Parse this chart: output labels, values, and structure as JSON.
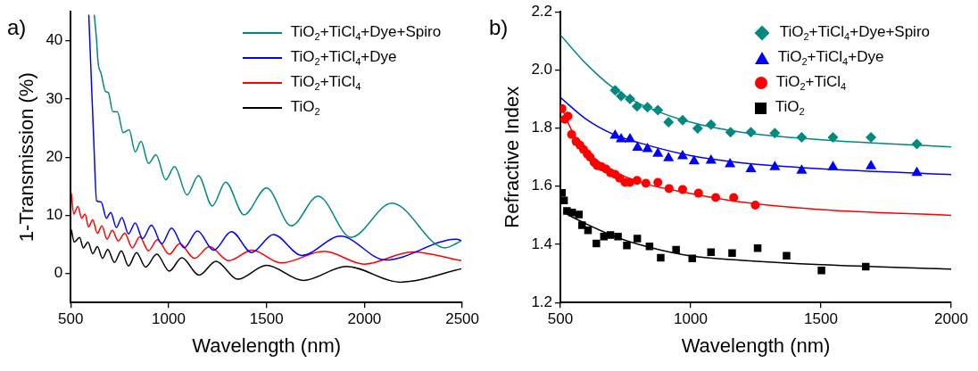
{
  "chart_data": [
    {
      "type": "line",
      "title": "a)",
      "xlabel": "Wavelength (nm)",
      "ylabel": "1-Transmission (%)",
      "xlim": [
        500,
        2500
      ],
      "xticks": [
        500,
        1000,
        1500,
        2000,
        2500
      ],
      "ylim": [
        -5,
        45
      ],
      "yticks": [
        0,
        10,
        20,
        30,
        40
      ],
      "legend": "top right",
      "marker": "none",
      "series": [
        {
          "name": "TiO$_{2}$+TiCl$_{4}$+Dye+Spiro",
          "color": "#00897f",
          "x": [
            620,
            632,
            639,
            655,
            677,
            692,
            715,
            738,
            768,
            798,
            829,
            859,
            897,
            935,
            985,
            1030,
            1094,
            1152,
            1223,
            1291,
            1385,
            1500,
            1626,
            1764,
            1931,
            2140,
            2411,
            2495
          ],
          "values": [
            44.5,
            40,
            36.4,
            34.4,
            31.3,
            31.1,
            27.8,
            27.8,
            24.2,
            24.7,
            20.9,
            22.7,
            18.9,
            20.4,
            16.1,
            18.4,
            13.5,
            16.8,
            11.6,
            15.7,
            10.1,
            14.7,
            8.2,
            13.3,
            6.2,
            12.1,
            4.4,
            5.6
          ]
        },
        {
          "name": "TiO$_{2}$+TiCl$_{4}$+Dye",
          "color": "#0000ff",
          "x": [
            592,
            602,
            617,
            632,
            655,
            682,
            704,
            733,
            761,
            795,
            829,
            867,
            912,
            965,
            1015,
            1079,
            1147,
            1230,
            1321,
            1424,
            1535,
            1680,
            1878,
            2107,
            2472,
            2495
          ],
          "values": [
            44.5,
            35.9,
            23.2,
            12.5,
            12.3,
            9.5,
            10.5,
            7.9,
            9.6,
            6.8,
            8.7,
            6,
            8.3,
            5.1,
            7.8,
            4.4,
            7.3,
            4,
            7.2,
            3.6,
            6.7,
            3.1,
            6.4,
            2.3,
            5.9,
            5.6
          ]
        },
        {
          "name": "TiO$_{2}$+TiCl$_{4}$",
          "color": "#ff0000",
          "x": [
            503,
            515,
            536,
            556,
            573,
            591,
            612,
            636,
            659,
            685,
            712,
            742,
            776,
            814,
            852,
            897,
            942,
            1003,
            1056,
            1132,
            1208,
            1307,
            1427,
            1573,
            1794,
            2000,
            2244,
            2495
          ],
          "values": [
            13.8,
            10.2,
            11.5,
            9.5,
            10.2,
            8,
            9.2,
            6.9,
            8.2,
            5.9,
            7.4,
            5.6,
            6.9,
            4.4,
            6.3,
            3.9,
            5.8,
            3.3,
            5.1,
            2.6,
            4.6,
            2.2,
            4,
            1.8,
            3.8,
            1.6,
            3.7,
            2.2
          ]
        },
        {
          "name": "TiO$_{2}$",
          "color": "#000000",
          "x": [
            503,
            518,
            545,
            564,
            588,
            612,
            636,
            662,
            689,
            723,
            758,
            795,
            836,
            882,
            939,
            1003,
            1067,
            1155,
            1242,
            1352,
            1500,
            1687,
            1908,
            2183,
            2495
          ],
          "values": [
            7.5,
            5.4,
            6.2,
            4.4,
            5.4,
            3.4,
            4.6,
            2.6,
            4.1,
            1.9,
            3.9,
            1.3,
            3.6,
            1.1,
            3.3,
            0.4,
            2.7,
            -0.3,
            2.1,
            -1,
            1.4,
            -1.2,
            1.2,
            -1.5,
            0.8
          ]
        }
      ]
    },
    {
      "type": "scatter",
      "title": "b)",
      "xlabel": "Wavelength (nm)",
      "ylabel": "Refractive Index",
      "xlim": [
        500,
        2000
      ],
      "xticks": [
        500,
        1000,
        1500,
        2000
      ],
      "ylim": [
        1.2,
        2.2
      ],
      "yticks": [
        1.2,
        1.4,
        1.6,
        1.8,
        {
          "value": 2,
          "label": "2.0"
        },
        2.2
      ],
      "legend": "top right",
      "series": [
        {
          "name": "TiO$_{2}$+TiCl$_{4}$+Dye+Spiro",
          "color": "#00897f",
          "marker": "diamond",
          "x": [
            710,
            733,
            767,
            794,
            834,
            874,
            915,
            969,
            1027,
            1078,
            1153,
            1231,
            1323,
            1426,
            1546,
            1692,
            1868
          ],
          "values": [
            1.93,
            1.91,
            1.9,
            1.875,
            1.872,
            1.862,
            1.82,
            1.827,
            1.799,
            1.812,
            1.786,
            1.786,
            1.783,
            1.768,
            1.768,
            1.768,
            1.745
          ]
        },
        {
          "name": "TiO$_{2}$+TiCl$_{4}$+Dye",
          "color": "#0000ff",
          "marker": "triangle",
          "x": [
            710,
            733,
            767,
            796,
            834,
            874,
            915,
            969,
            1013,
            1078,
            1151,
            1231,
            1323,
            1426,
            1546,
            1692,
            1868
          ],
          "values": [
            1.774,
            1.762,
            1.762,
            1.733,
            1.728,
            1.712,
            1.697,
            1.704,
            1.686,
            1.688,
            1.676,
            1.659,
            1.666,
            1.654,
            1.666,
            1.669,
            1.646
          ]
        },
        {
          "name": "TiO$_{2}$+TiCl$_{4}$",
          "color": "#ff0000",
          "marker": "circle",
          "x": [
            506,
            517,
            529,
            543,
            560,
            575,
            589,
            603,
            614,
            629,
            641,
            658,
            675,
            692,
            710,
            727,
            748,
            767,
            794,
            828,
            874,
            917,
            969,
            1030,
            1096,
            1165,
            1248
          ],
          "values": [
            1.867,
            1.83,
            1.841,
            1.778,
            1.754,
            1.741,
            1.726,
            1.711,
            1.7,
            1.682,
            1.671,
            1.667,
            1.659,
            1.646,
            1.641,
            1.628,
            1.613,
            1.613,
            1.62,
            1.61,
            1.613,
            1.592,
            1.589,
            1.576,
            1.561,
            1.561,
            1.535
          ]
        },
        {
          "name": "TiO$_{2}$",
          "color": "#000000",
          "marker": "square",
          "x": [
            506,
            514,
            525,
            545,
            571,
            583,
            606,
            638,
            667,
            692,
            721,
            755,
            795,
            842,
            885,
            944,
            1006,
            1078,
            1159,
            1257,
            1368,
            1502,
            1672
          ],
          "values": [
            1.577,
            1.551,
            1.515,
            1.51,
            1.503,
            1.466,
            1.448,
            1.403,
            1.427,
            1.432,
            1.427,
            1.396,
            1.42,
            1.393,
            1.354,
            1.382,
            1.352,
            1.373,
            1.37,
            1.387,
            1.361,
            1.31,
            1.323
          ]
        },
        {
          "type": "line",
          "color": "#00897f",
          "x": [
            500,
            600,
            700,
            800,
            1000,
            1200,
            1500,
            2000
          ],
          "values": [
            2.12,
            2.02,
            1.94,
            1.885,
            1.82,
            1.785,
            1.76,
            1.735
          ]
        },
        {
          "type": "line",
          "color": "#0000ff",
          "x": [
            500,
            600,
            700,
            800,
            1000,
            1200,
            1500,
            2000
          ],
          "values": [
            1.905,
            1.83,
            1.78,
            1.75,
            1.705,
            1.68,
            1.66,
            1.64
          ]
        },
        {
          "type": "line",
          "color": "#ff0000",
          "x": [
            500,
            550,
            600,
            700,
            800,
            1000,
            1200,
            1500,
            2000
          ],
          "values": [
            1.88,
            1.78,
            1.72,
            1.655,
            1.615,
            1.575,
            1.545,
            1.52,
            1.5
          ]
        },
        {
          "type": "line",
          "color": "#000000",
          "x": [
            510,
            600,
            700,
            800,
            1000,
            1200,
            1500,
            2000
          ],
          "values": [
            1.51,
            1.47,
            1.43,
            1.4,
            1.36,
            1.345,
            1.33,
            1.315
          ]
        }
      ]
    }
  ]
}
